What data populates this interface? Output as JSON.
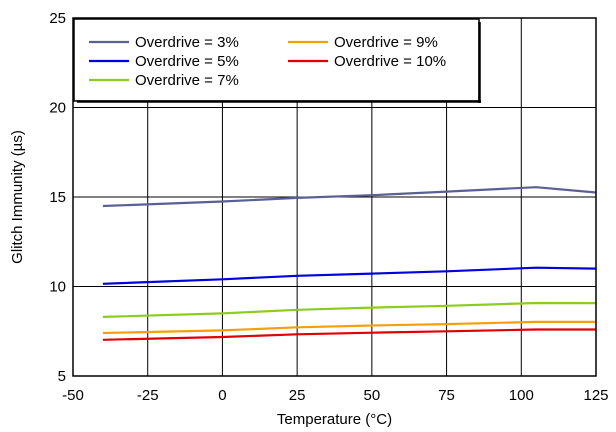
{
  "chart_data": {
    "type": "line",
    "title": "",
    "xlabel": "Temperature (°C)",
    "ylabel": "Glitch Immunity (µs)",
    "xlim": [
      -50,
      125
    ],
    "ylim": [
      5,
      25
    ],
    "x_ticks": [
      -50,
      -25,
      0,
      25,
      50,
      75,
      100,
      125
    ],
    "y_ticks": [
      5,
      10,
      15,
      20,
      25
    ],
    "x_tick_labels": [
      "-50",
      "-25",
      "0",
      "25",
      "50",
      "75",
      "100",
      "125"
    ],
    "y_tick_labels": [
      "5",
      "10",
      "15",
      "20",
      "25"
    ],
    "grid": true,
    "legend_position": "top-left",
    "series": [
      {
        "name": "Overdrive = 3%",
        "color": "#5a5f96",
        "x": [
          -40,
          0,
          25,
          50,
          75,
          105,
          125
        ],
        "y": [
          14.5,
          14.75,
          14.95,
          15.1,
          15.3,
          15.55,
          15.25
        ]
      },
      {
        "name": "Overdrive = 5%",
        "color": "#0000e0",
        "x": [
          -40,
          0,
          25,
          50,
          75,
          105,
          125
        ],
        "y": [
          10.15,
          10.4,
          10.6,
          10.72,
          10.85,
          11.05,
          11.0
        ]
      },
      {
        "name": "Overdrive = 7%",
        "color": "#8ccc1e",
        "x": [
          -40,
          0,
          25,
          50,
          75,
          105,
          125
        ],
        "y": [
          8.3,
          8.5,
          8.7,
          8.82,
          8.92,
          9.08,
          9.07
        ]
      },
      {
        "name": "Overdrive = 9%",
        "color": "#f5a00a",
        "x": [
          -40,
          0,
          25,
          50,
          75,
          105,
          125
        ],
        "y": [
          7.4,
          7.55,
          7.72,
          7.82,
          7.9,
          8.02,
          8.02
        ]
      },
      {
        "name": "Overdrive = 10%",
        "color": "#e00000",
        "x": [
          -40,
          0,
          25,
          50,
          75,
          105,
          125
        ],
        "y": [
          7.02,
          7.18,
          7.33,
          7.42,
          7.5,
          7.6,
          7.6
        ]
      }
    ]
  }
}
